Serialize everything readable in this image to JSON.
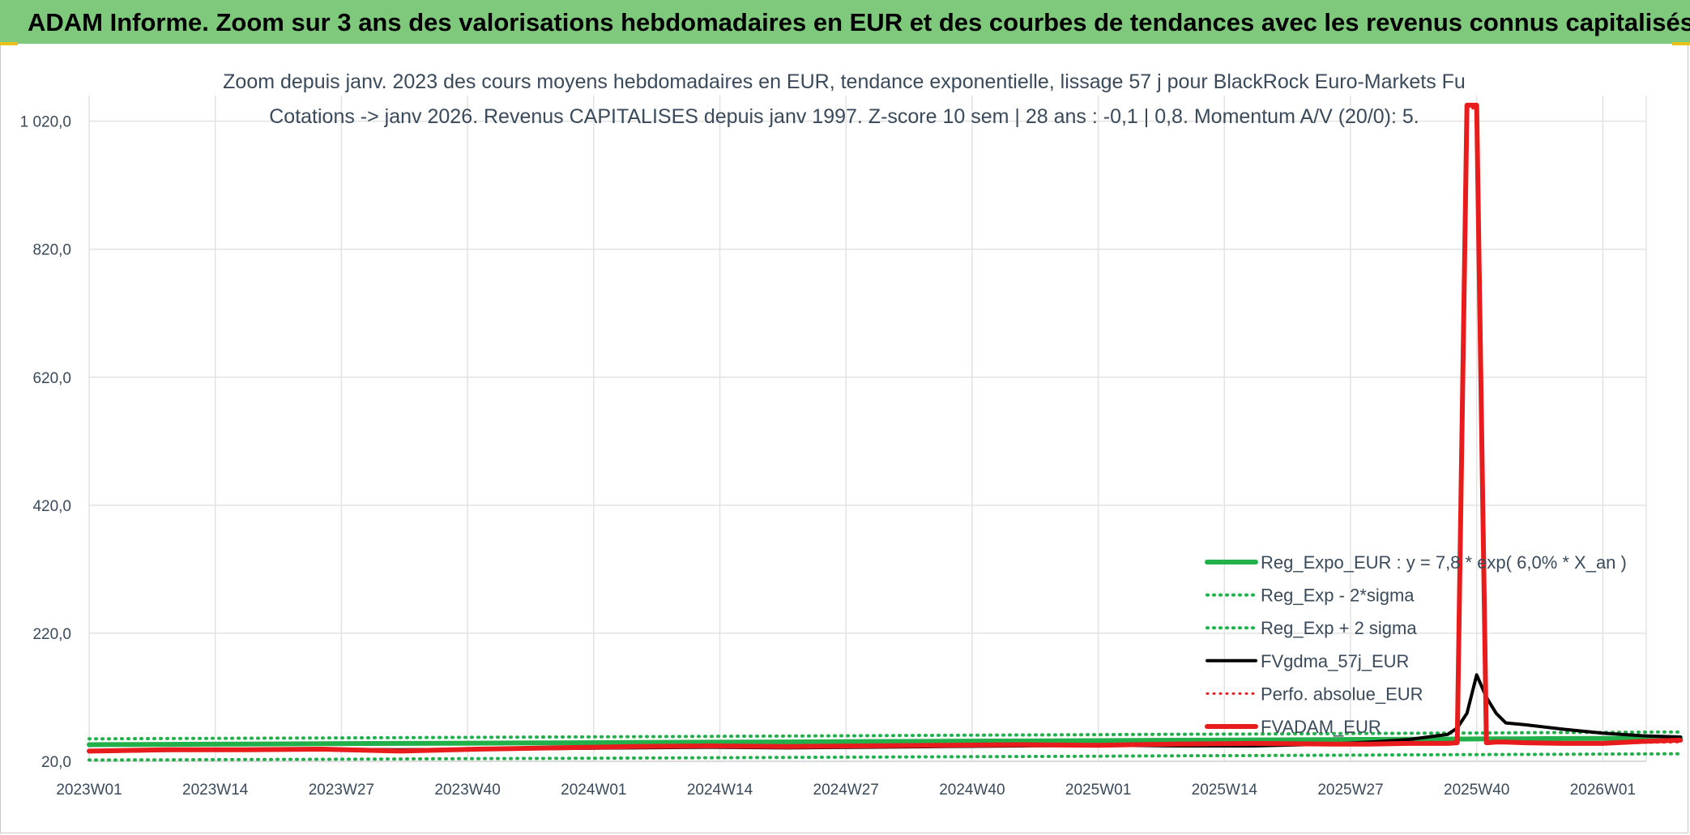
{
  "header": {
    "banner": "ADAM Informe. Zoom sur 3 ans des valorisations hebdomadaires en EUR et des courbes de tendances avec les revenus connus capitalisés"
  },
  "chart_data": {
    "type": "line",
    "title": "Zoom depuis janv. 2023 des cours moyens hebdomadaires en EUR, tendance exponentielle, lissage 57 j pour BlackRock Euro-Markets Fu",
    "subtitle": "Cotations -> janv 2026. Revenus CAPITALISES depuis janv 1997. Z-score 10 sem | 28 ans : -0,1 | 0,8. Momentum A/V (20/0): 5.",
    "x_tick_labels": [
      "2023W01",
      "2023W14",
      "2023W27",
      "2023W40",
      "2024W01",
      "2024W14",
      "2024W27",
      "2024W40",
      "2025W01",
      "2025W14",
      "2025W27",
      "2025W40",
      "2026W01"
    ],
    "y_tick_labels": [
      "20,0",
      "220,0",
      "420,0",
      "620,0",
      "820,0",
      "1 020,0"
    ],
    "ylim": [
      20,
      1060
    ],
    "grid": true,
    "legend_position": "bottom-right",
    "x_weeks": [
      0,
      8,
      16,
      24,
      32,
      40,
      48,
      56,
      64,
      72,
      80,
      88,
      96,
      104,
      112,
      120,
      128,
      132,
      136,
      140,
      141,
      142,
      143,
      144,
      145,
      146,
      148,
      152,
      156,
      160,
      164
    ],
    "series": [
      {
        "name": "Reg_Expo_EUR : y = 7,8 * exp( 6,0% *  X_an )",
        "color": "#22b04a",
        "style": "solid",
        "width": 6,
        "values": [
          46,
          46.4,
          46.9,
          47.4,
          47.9,
          48.4,
          48.9,
          49.3,
          49.8,
          50.3,
          50.9,
          51.3,
          51.8,
          52.3,
          52.9,
          53.4,
          53.9,
          54.2,
          54.4,
          54.7,
          54.8,
          54.8,
          54.9,
          54.9,
          55,
          55.1,
          55.2,
          55.5,
          55.7,
          56,
          56.3
        ]
      },
      {
        "name": "Reg_Exp - 2*sigma",
        "color": "#22b04a",
        "style": "dotted",
        "width": 4,
        "values": [
          22,
          22.3,
          22.8,
          23.2,
          23.7,
          24.2,
          24.6,
          25.1,
          25.6,
          26.1,
          26.6,
          27.1,
          27.5,
          28,
          28.6,
          29,
          29.5,
          29.8,
          30.1,
          30.3,
          30.4,
          30.4,
          30.5,
          30.5,
          30.6,
          30.6,
          30.8,
          31,
          31.3,
          31.5,
          31.8
        ]
      },
      {
        "name": "Reg_Exp + 2 sigma",
        "color": "#22b04a",
        "style": "dotted",
        "width": 4,
        "values": [
          55,
          55.5,
          56,
          56.5,
          57,
          57.5,
          58,
          58.5,
          59,
          59.5,
          60,
          60.6,
          61.1,
          61.6,
          62.2,
          62.7,
          63.3,
          63.5,
          63.8,
          64.1,
          64.1,
          64.2,
          64.3,
          64.3,
          64.4,
          64.4,
          64.6,
          64.9,
          65.2,
          65.5,
          65.8
        ]
      },
      {
        "name": "FVgdma_57j_EUR",
        "color": "#000000",
        "style": "solid",
        "width": 4,
        "values": [
          35,
          37,
          38,
          39,
          38,
          39,
          40,
          41,
          42,
          41,
          42,
          43,
          44,
          45,
          44,
          44,
          47,
          50,
          54,
          62,
          72,
          95,
          155,
          120,
          95,
          80,
          77,
          70,
          64,
          60,
          58
        ]
      },
      {
        "name": "Perfo. absolue_EUR",
        "color": "#e81c1c",
        "style": "dotted",
        "width": 3,
        "values": [
          36,
          37,
          37,
          38,
          36,
          38,
          40,
          42,
          43,
          42,
          43,
          44,
          45,
          44,
          46,
          47,
          46,
          46,
          47,
          47,
          48,
          1040,
          1040,
          48,
          49,
          49,
          48,
          47,
          47,
          49,
          50
        ]
      },
      {
        "name": "FVADAM_EUR",
        "color": "#e81c1c",
        "style": "solid",
        "width": 6,
        "values": [
          36,
          38,
          38,
          39,
          36,
          39,
          41,
          43,
          44,
          43,
          44,
          45,
          46,
          45,
          47,
          48,
          47,
          47,
          48,
          48,
          49,
          1045,
          1045,
          49,
          50,
          50,
          49,
          48,
          48,
          51,
          53
        ]
      }
    ]
  }
}
